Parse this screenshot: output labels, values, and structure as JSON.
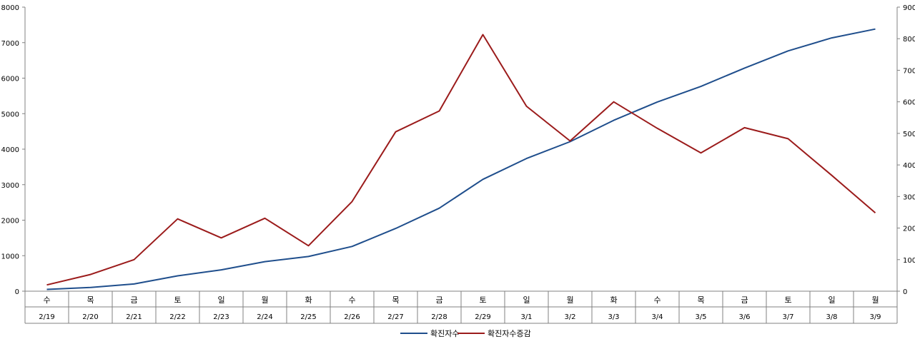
{
  "chart_data": {
    "type": "line",
    "title": "",
    "categories": [
      "수",
      "목",
      "금",
      "토",
      "일",
      "월",
      "화",
      "수",
      "목",
      "금",
      "토",
      "일",
      "월",
      "화",
      "수",
      "목",
      "금",
      "토",
      "일",
      "월"
    ],
    "dates": [
      "2/19",
      "2/20",
      "2/21",
      "2/22",
      "2/23",
      "2/24",
      "2/25",
      "2/26",
      "2/27",
      "2/28",
      "2/29",
      "3/1",
      "3/2",
      "3/3",
      "3/4",
      "3/5",
      "3/6",
      "3/7",
      "3/8",
      "3/9"
    ],
    "y_left": {
      "min": 0,
      "max": 8000,
      "step": 1000
    },
    "y_right": {
      "min": 0,
      "max": 900,
      "step": 100
    },
    "series": [
      {
        "name": "확진자수",
        "axis": "left",
        "color": "#1F4E8C",
        "values": [
          51,
          104,
          204,
          433,
          602,
          833,
          977,
          1261,
          1766,
          2337,
          3150,
          3736,
          4212,
          4812,
          5328,
          5766,
          6284,
          6767,
          7134,
          7382
        ]
      },
      {
        "name": "확진자수증감",
        "axis": "right",
        "color": "#9B1B1B",
        "values": [
          20,
          53,
          100,
          229,
          169,
          231,
          144,
          284,
          505,
          571,
          813,
          586,
          476,
          600,
          516,
          438,
          518,
          483,
          367,
          248
        ]
      }
    ],
    "legend_position": "bottom-center",
    "grid": false
  }
}
